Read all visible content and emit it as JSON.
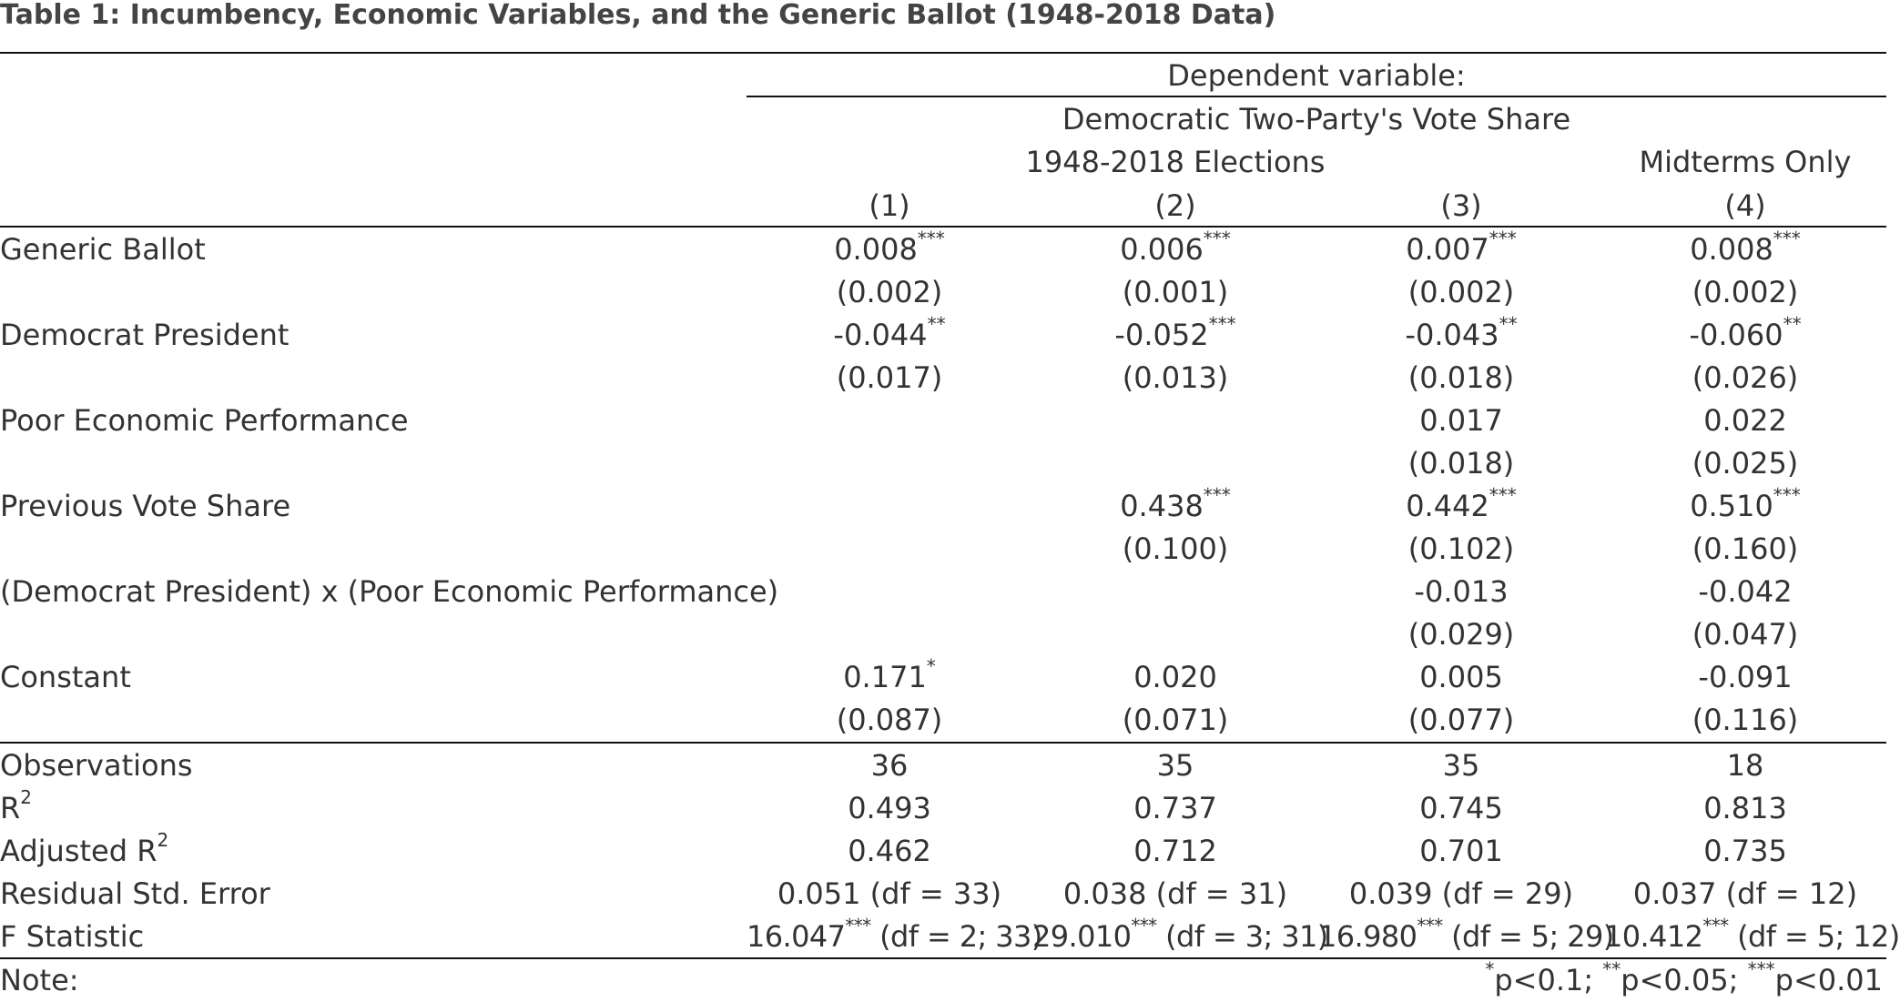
{
  "title": "Table 1: Incumbency, Economic Variables, and the Generic Ballot (1948-2018 Data)",
  "header": {
    "dep_var_label": "Dependent variable:",
    "dep_var_name": "Democratic Two-Party's Vote Share",
    "sample_all": "1948-2018 Elections",
    "sample_midterms": "Midterms Only",
    "columns": [
      "(1)",
      "(2)",
      "(3)",
      "(4)"
    ]
  },
  "coefficients": [
    {
      "label": "Generic Ballot",
      "est": [
        {
          "v": "0.008",
          "s": "***"
        },
        {
          "v": "0.006",
          "s": "***"
        },
        {
          "v": "0.007",
          "s": "***"
        },
        {
          "v": "0.008",
          "s": "***"
        }
      ],
      "se": [
        "(0.002)",
        "(0.001)",
        "(0.002)",
        "(0.002)"
      ]
    },
    {
      "label": "Democrat President",
      "est": [
        {
          "v": "-0.044",
          "s": "**"
        },
        {
          "v": "-0.052",
          "s": "***"
        },
        {
          "v": "-0.043",
          "s": "**"
        },
        {
          "v": "-0.060",
          "s": "**"
        }
      ],
      "se": [
        "(0.017)",
        "(0.013)",
        "(0.018)",
        "(0.026)"
      ]
    },
    {
      "label": "Poor Economic Performance",
      "est": [
        {
          "v": "",
          "s": ""
        },
        {
          "v": "",
          "s": ""
        },
        {
          "v": "0.017",
          "s": ""
        },
        {
          "v": "0.022",
          "s": ""
        }
      ],
      "se": [
        "",
        "",
        "(0.018)",
        "(0.025)"
      ]
    },
    {
      "label": "Previous Vote Share",
      "est": [
        {
          "v": "",
          "s": ""
        },
        {
          "v": "0.438",
          "s": "***"
        },
        {
          "v": "0.442",
          "s": "***"
        },
        {
          "v": "0.510",
          "s": "***"
        }
      ],
      "se": [
        "",
        "(0.100)",
        "(0.102)",
        "(0.160)"
      ]
    },
    {
      "label": "(Democrat President) x (Poor Economic Performance)",
      "est": [
        {
          "v": "",
          "s": ""
        },
        {
          "v": "",
          "s": ""
        },
        {
          "v": "-0.013",
          "s": ""
        },
        {
          "v": "-0.042",
          "s": ""
        }
      ],
      "se": [
        "",
        "",
        "(0.029)",
        "(0.047)"
      ]
    },
    {
      "label": "Constant",
      "est": [
        {
          "v": "0.171",
          "s": "*"
        },
        {
          "v": "0.020",
          "s": ""
        },
        {
          "v": "0.005",
          "s": ""
        },
        {
          "v": "-0.091",
          "s": ""
        }
      ],
      "se": [
        "(0.087)",
        "(0.071)",
        "(0.077)",
        "(0.116)"
      ]
    }
  ],
  "stats": {
    "observations": {
      "label": "Observations",
      "values": [
        "36",
        "35",
        "35",
        "18"
      ]
    },
    "r2": {
      "label": "R",
      "sup": "2",
      "values": [
        "0.493",
        "0.737",
        "0.745",
        "0.813"
      ]
    },
    "adj_r2": {
      "label": "Adjusted R",
      "sup": "2",
      "values": [
        "0.462",
        "0.712",
        "0.701",
        "0.735"
      ]
    },
    "rse": {
      "label": "Residual Std. Error",
      "values": [
        "0.051 (df = 33)",
        "0.038 (df = 31)",
        "0.039 (df = 29)",
        "0.037 (df = 12)"
      ]
    },
    "fstat": {
      "label": "F Statistic",
      "values": [
        {
          "v": "16.047",
          "s": "***",
          "df": " (df = 2; 33)"
        },
        {
          "v": "29.010",
          "s": "***",
          "df": " (df = 3; 31)"
        },
        {
          "v": "16.980",
          "s": "***",
          "df": " (df = 5; 29)"
        },
        {
          "v": "10.412",
          "s": "***",
          "df": " (df = 5; 12)"
        }
      ]
    }
  },
  "note": {
    "label": "Note:",
    "parts": [
      {
        "s": "*",
        "t": "p<0.1; "
      },
      {
        "s": "**",
        "t": "p<0.05; "
      },
      {
        "s": "***",
        "t": "p<0.01"
      }
    ]
  }
}
